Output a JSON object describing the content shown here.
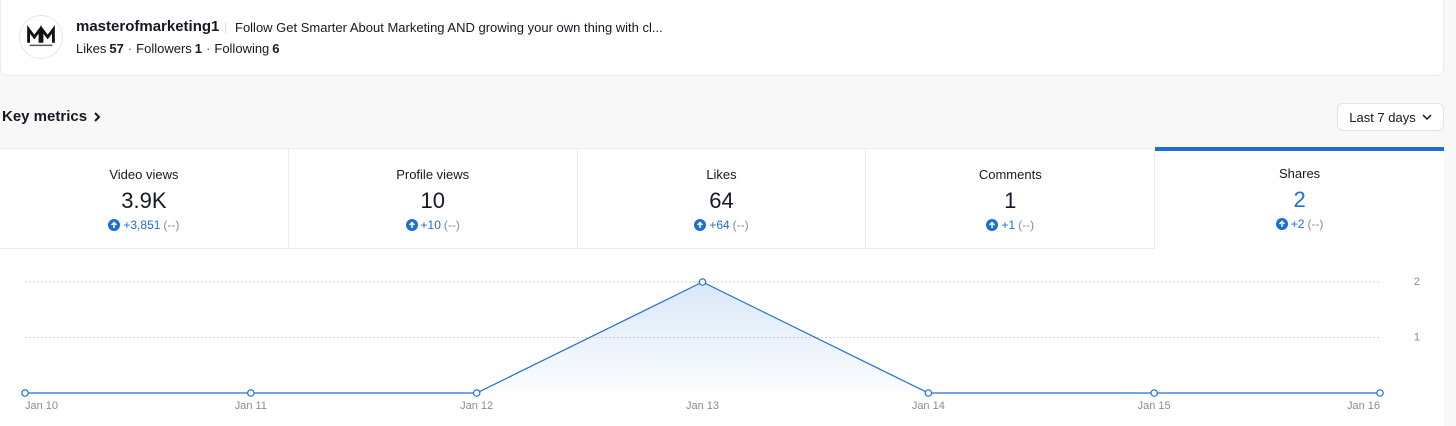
{
  "profile": {
    "username": "masterofmarketing1",
    "bio": "Follow Get Smarter About Marketing AND growing your own thing with cl...",
    "separator": "·",
    "stats": [
      {
        "label": "Likes",
        "value": 57
      },
      {
        "label": "Followers",
        "value": 1
      },
      {
        "label": "Following",
        "value": 6
      }
    ]
  },
  "section": {
    "title": "Key metrics",
    "range": "Last 7 days"
  },
  "metrics": [
    {
      "label": "Video views",
      "value": "3.9K",
      "change": "+3,851",
      "previous": "(--)"
    },
    {
      "label": "Profile views",
      "value": 10,
      "change": "+10",
      "previous": "(--)"
    },
    {
      "label": "Likes",
      "value": 64,
      "change": "+64",
      "previous": "(--)"
    },
    {
      "label": "Comments",
      "value": 1,
      "change": "+1",
      "previous": "(--)"
    },
    {
      "label": "Shares",
      "value": 2,
      "change": "+2",
      "previous": "(--)",
      "active": true
    }
  ],
  "chart_data": {
    "type": "area",
    "x": [
      "Jan 10",
      "Jan 11",
      "Jan 12",
      "Jan 13",
      "Jan 14",
      "Jan 15",
      "Jan 16"
    ],
    "values": [
      0,
      0,
      0,
      2,
      0,
      0,
      0
    ],
    "ylim": [
      0,
      2
    ],
    "yticks": [
      1,
      2
    ],
    "grid": true,
    "color": "#1b6fd6"
  }
}
